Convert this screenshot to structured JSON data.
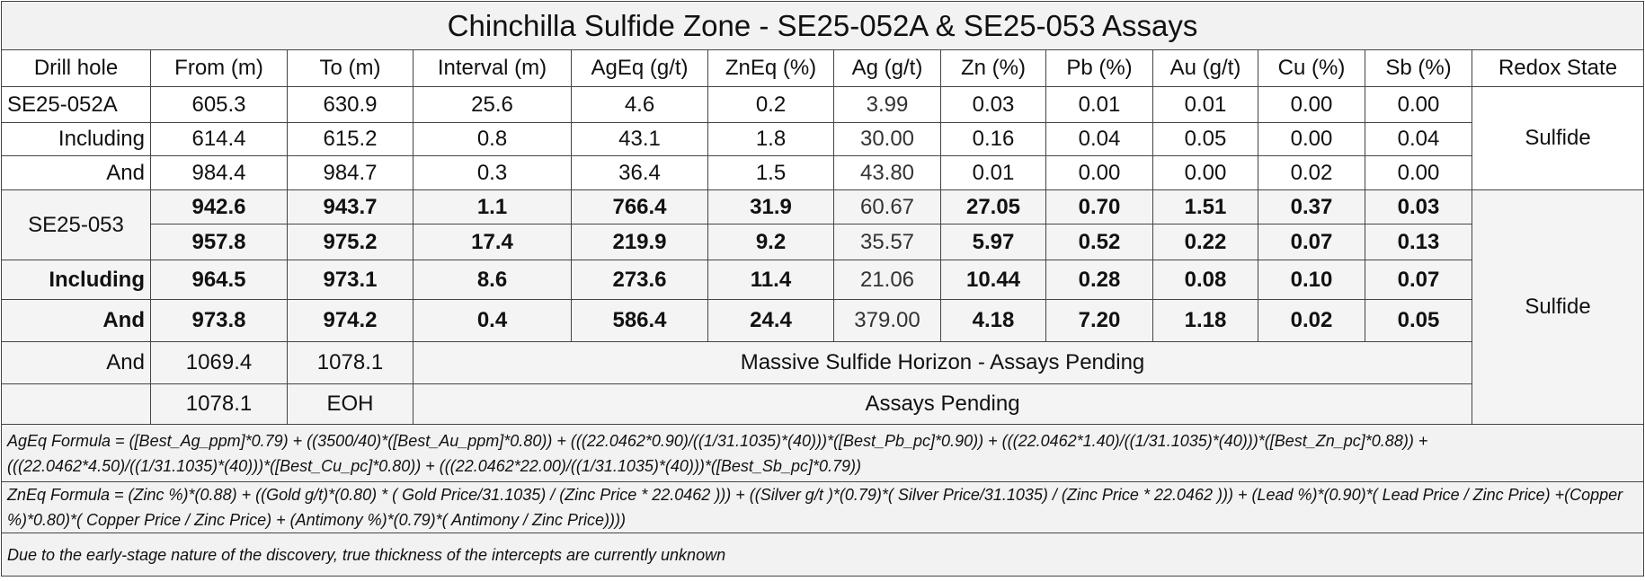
{
  "title": "Chinchilla Sulfide Zone - SE25-052A & SE25-053 Assays",
  "header": [
    "Drill hole",
    "From (m)",
    "To (m)",
    "Interval (m)",
    "AgEq (g/t)",
    "ZnEq (%)",
    "Ag (g/t)",
    "Zn (%)",
    "Pb (%)",
    "Au (g/t)",
    "Cu (%)",
    "Sb (%)",
    "Redox State"
  ],
  "rows": [
    [
      "SE25-052A",
      "605.3",
      "630.9",
      "25.6",
      "4.6",
      "0.2",
      "3.99",
      "0.03",
      "0.01",
      "0.01",
      "0.00",
      "0.00"
    ],
    [
      "Including",
      "614.4",
      "615.2",
      "0.8",
      "43.1",
      "1.8",
      "30.00",
      "0.16",
      "0.04",
      "0.05",
      "0.00",
      "0.04"
    ],
    [
      "And",
      "984.4",
      "984.7",
      "0.3",
      "36.4",
      "1.5",
      "43.80",
      "0.01",
      "0.00",
      "0.00",
      "0.02",
      "0.00"
    ],
    [
      "SE25-053",
      "942.6",
      "943.7",
      "1.1",
      "766.4",
      "31.9",
      "60.67",
      "27.05",
      "0.70",
      "1.51",
      "0.37",
      "0.03"
    ],
    [
      "957.8",
      "975.2",
      "17.4",
      "219.9",
      "9.2",
      "35.57",
      "5.97",
      "0.52",
      "0.22",
      "0.07",
      "0.13"
    ],
    [
      "Including",
      "964.5",
      "973.1",
      "8.6",
      "273.6",
      "11.4",
      "21.06",
      "10.44",
      "0.28",
      "0.08",
      "0.10",
      "0.07"
    ],
    [
      "And",
      "973.8",
      "974.2",
      "0.4",
      "586.4",
      "24.4",
      "379.00",
      "4.18",
      "7.20",
      "1.18",
      "0.02",
      "0.05"
    ]
  ],
  "pending_rows": [
    {
      "cells": [
        "And",
        "1069.4",
        "1078.1"
      ],
      "note": "Massive Sulfide Horizon - Assays Pending"
    },
    {
      "cells": [
        "1078.1",
        "EOH"
      ],
      "note": "Assays Pending"
    }
  ],
  "redox": [
    "Sulfide",
    "Sulfide"
  ],
  "notes": [
    "AgEq Formula = ([Best_Ag_ppm]*0.79) + ((3500/40)*([Best_Au_ppm]*0.80)) + (((22.0462*0.90)/((1/31.1035)*(40)))*([Best_Pb_pc]*0.90)) + (((22.0462*1.40)/((1/31.1035)*(40)))*([Best_Zn_pc]*0.88)) + (((22.0462*4.50)/((1/31.1035)*(40)))*([Best_Cu_pc]*0.80)) + (((22.0462*22.00)/((1/31.1035)*(40)))*([Best_Sb_pc]*0.79))",
    "ZnEq Formula = (Zinc %)*(0.88) + ((Gold g/t)*(0.80) * ( Gold Price/31.1035) / (Zinc  Price * 22.0462 ))) + ((Silver g/t )*(0.79)*( Silver Price/31.1035) / (Zinc  Price * 22.0462 ))) + (Lead %)*(0.90)*( Lead Price / Zinc Price) +(Copper %)*0.80)*( Copper Price / Zinc Price) + (Antimony %)*(0.79)*( Antimony / Zinc Price))))",
    "Due to the early-stage nature of the discovery, true thickness of the intercepts are currently unknown"
  ]
}
